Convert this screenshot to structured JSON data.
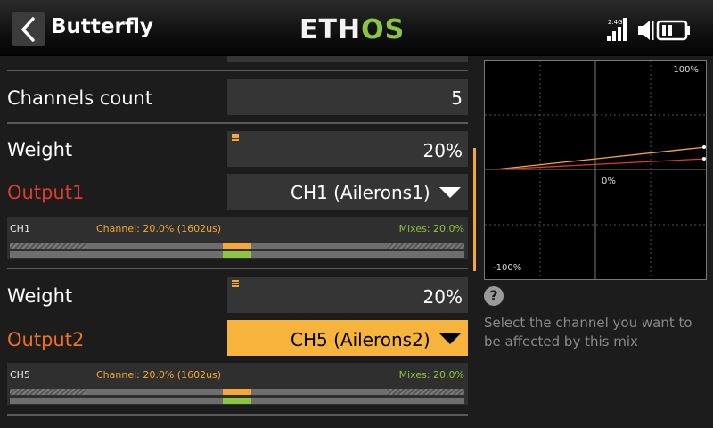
{
  "header": {
    "title": "Butterfly",
    "logo_main": "ETH",
    "logo_accent": "OS",
    "signal_label": "2.4G"
  },
  "form": {
    "channels_count": {
      "label": "Channels count",
      "value": "5"
    },
    "channel1": {
      "weight_label": "Weight",
      "weight_value": "20%",
      "output_label": "Output1",
      "output_value": "CH1 (Ailerons1)",
      "monitor": {
        "channel": "CH1",
        "channel_value": "Channel: 20.0% (1602us)",
        "mixes_value": "Mixes: 20.0%",
        "output_level": 0.2
      }
    },
    "channel2": {
      "weight_label": "Weight",
      "weight_value": "20%",
      "output_label": "Output2",
      "output_value": "CH5 (Ailerons2)",
      "monitor": {
        "channel": "CH5",
        "channel_value": "Channel: 20.0% (1602us)",
        "mixes_value": "Mixes: 20.0%",
        "output_level": 0.2
      }
    }
  },
  "chart_labels": {
    "top": "100%",
    "center": "0%",
    "bottom": "-100%"
  },
  "help": {
    "icon": "question-icon",
    "text": "Select the channel you want to be affected by this mix"
  },
  "colors": {
    "accent": "#f7a733",
    "green": "#8cc63f",
    "output1_label": "#e03a2f",
    "output2_label": "#f26f21",
    "selected_field": "#f7b43c"
  }
}
